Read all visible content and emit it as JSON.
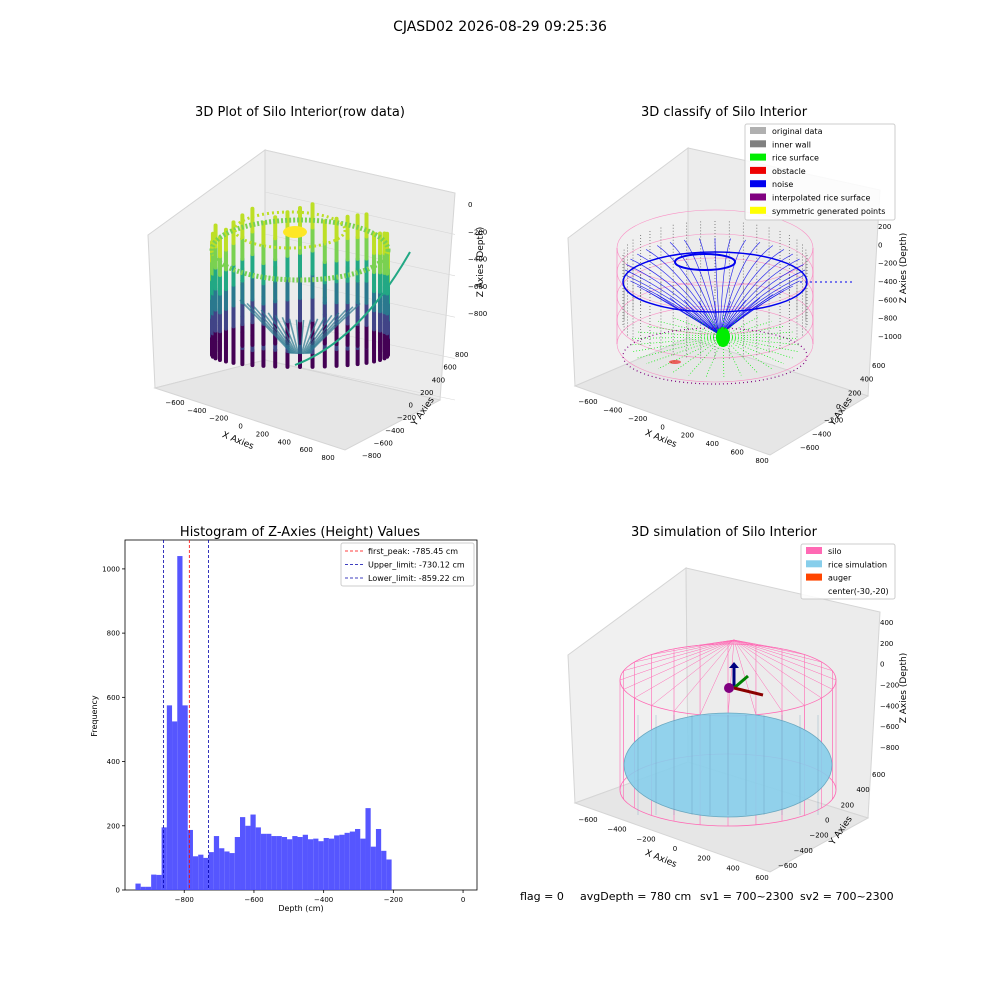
{
  "figure": {
    "suptitle": "CJASD02 2026-08-29 09:25:36",
    "status": {
      "flag": "flag = 0",
      "avg_depth": "avgDepth = 780 cm",
      "sv1": "sv1 = 700~2300",
      "sv2": "sv2 = 700~2300"
    }
  },
  "colors": {
    "histogram_bar": "#4d4dff",
    "first_peak_line": "#ff0000",
    "limit_line": "#0000aa",
    "silo": "#ff69b4",
    "rice": "#87ceeb",
    "auger": "#ff4500",
    "noise": "#0000ee",
    "rice_surface": "#00ee00",
    "interpolated": "#800080",
    "original": "#b0b0b0",
    "inner_wall": "#808080",
    "symmetric": "#ffff00"
  },
  "chart_data": [
    {
      "type": "scatter3d",
      "title": "3D Plot of Silo Interior(row data)",
      "xlabel": "X Axies",
      "ylabel": "Y Axies",
      "zlabel": "Z Axies (Depth)",
      "x_ticks": [
        "−600",
        "−400",
        "−200",
        "0",
        "200",
        "400",
        "600",
        "800"
      ],
      "y_ticks": [
        "800",
        "600",
        "400",
        "200",
        "0",
        "−200",
        "−400",
        "−600",
        "−800"
      ],
      "z_ticks": [
        "0",
        "−200",
        "−400",
        "−600",
        "−800"
      ],
      "colormap": "viridis"
    },
    {
      "type": "scatter3d",
      "title": "3D classify of Silo Interior",
      "xlabel": "X Axies",
      "ylabel": "Y Axies",
      "zlabel": "Z Axies (Depth)",
      "x_ticks": [
        "−600",
        "−400",
        "−200",
        "0",
        "200",
        "400",
        "600",
        "800"
      ],
      "y_ticks": [
        "600",
        "400",
        "200",
        "0",
        "−200",
        "−400",
        "−600"
      ],
      "z_ticks": [
        "200",
        "0",
        "−200",
        "−400",
        "−600",
        "−800",
        "−1000"
      ],
      "legend_position": "top-right",
      "legend": [
        {
          "label": "original data",
          "color": "#b0b0b0"
        },
        {
          "label": "inner wall",
          "color": "#808080"
        },
        {
          "label": "rice surface",
          "color": "#00ee00"
        },
        {
          "label": "obstacle",
          "color": "#ee0000"
        },
        {
          "label": "noise",
          "color": "#0000ee"
        },
        {
          "label": "interpolated rice surface",
          "color": "#800080"
        },
        {
          "label": "symmetric generated points",
          "color": "#ffff00"
        }
      ]
    },
    {
      "type": "bar",
      "title": "Histogram of Z-Axies (Height) Values",
      "xlabel": "Depth (cm)",
      "ylabel": "Frequency",
      "xlim": [
        -970,
        40
      ],
      "ylim": [
        0,
        1090
      ],
      "bin_width": 15,
      "x_ticks": [
        -800,
        -600,
        -400,
        -200,
        0
      ],
      "y_ticks": [
        0,
        200,
        400,
        600,
        800,
        1000
      ],
      "bins": [
        {
          "x0": -940,
          "v": 20
        },
        {
          "x0": -925,
          "v": 10
        },
        {
          "x0": -910,
          "v": 10
        },
        {
          "x0": -895,
          "v": 48
        },
        {
          "x0": -880,
          "v": 47
        },
        {
          "x0": -865,
          "v": 195
        },
        {
          "x0": -850,
          "v": 575
        },
        {
          "x0": -835,
          "v": 525
        },
        {
          "x0": -820,
          "v": 1040
        },
        {
          "x0": -805,
          "v": 575
        },
        {
          "x0": -790,
          "v": 187
        },
        {
          "x0": -775,
          "v": 105
        },
        {
          "x0": -760,
          "v": 110
        },
        {
          "x0": -745,
          "v": 100
        },
        {
          "x0": -730,
          "v": 118
        },
        {
          "x0": -715,
          "v": 168
        },
        {
          "x0": -700,
          "v": 130
        },
        {
          "x0": -685,
          "v": 120
        },
        {
          "x0": -670,
          "v": 115
        },
        {
          "x0": -655,
          "v": 165
        },
        {
          "x0": -640,
          "v": 227
        },
        {
          "x0": -625,
          "v": 200
        },
        {
          "x0": -610,
          "v": 235
        },
        {
          "x0": -595,
          "v": 195
        },
        {
          "x0": -580,
          "v": 175
        },
        {
          "x0": -565,
          "v": 175
        },
        {
          "x0": -550,
          "v": 168
        },
        {
          "x0": -535,
          "v": 168
        },
        {
          "x0": -520,
          "v": 165
        },
        {
          "x0": -505,
          "v": 158
        },
        {
          "x0": -490,
          "v": 168
        },
        {
          "x0": -475,
          "v": 165
        },
        {
          "x0": -460,
          "v": 172
        },
        {
          "x0": -445,
          "v": 158
        },
        {
          "x0": -430,
          "v": 160
        },
        {
          "x0": -415,
          "v": 152
        },
        {
          "x0": -400,
          "v": 162
        },
        {
          "x0": -385,
          "v": 160
        },
        {
          "x0": -370,
          "v": 170
        },
        {
          "x0": -355,
          "v": 172
        },
        {
          "x0": -340,
          "v": 178
        },
        {
          "x0": -325,
          "v": 182
        },
        {
          "x0": -310,
          "v": 190
        },
        {
          "x0": -295,
          "v": 160
        },
        {
          "x0": -280,
          "v": 255
        },
        {
          "x0": -265,
          "v": 135
        },
        {
          "x0": -250,
          "v": 190
        },
        {
          "x0": -235,
          "v": 122
        },
        {
          "x0": -220,
          "v": 95
        }
      ],
      "vlines": [
        {
          "label": "first_peak: -785.45 cm",
          "x": -785.45,
          "color": "#ff0000"
        },
        {
          "label": "Upper_limit: -730.12 cm",
          "x": -730.12,
          "color": "#0000aa"
        },
        {
          "label": "Lower_limit: -859.22 cm",
          "x": -859.22,
          "color": "#0000aa"
        }
      ],
      "legend_position": "top-right"
    },
    {
      "type": "surface3d",
      "title": "3D simulation of Silo Interior",
      "xlabel": "X Axies",
      "ylabel": "Y Axies",
      "zlabel": "Z Axies (Depth)",
      "x_ticks": [
        "−600",
        "−400",
        "−200",
        "0",
        "200",
        "400",
        "600"
      ],
      "y_ticks": [
        "600",
        "400",
        "200",
        "0",
        "−200",
        "−400",
        "−600"
      ],
      "z_ticks": [
        "400",
        "200",
        "0",
        "−200",
        "−400",
        "−600",
        "−800"
      ],
      "legend_position": "top-right",
      "legend": [
        {
          "label": "silo",
          "color": "#ff69b4"
        },
        {
          "label": "rice simulation",
          "color": "#87ceeb"
        },
        {
          "label": "auger",
          "color": "#ff4500"
        },
        {
          "label": "center(-30,-20)",
          "color": ""
        }
      ]
    }
  ]
}
